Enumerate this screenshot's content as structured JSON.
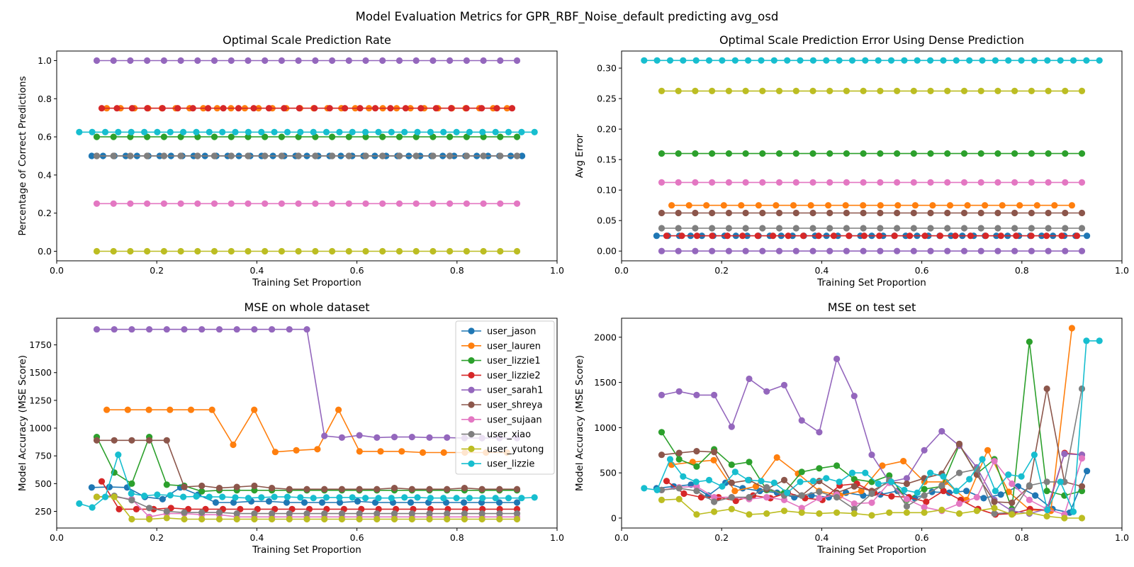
{
  "figure": {
    "suptitle": "Model Evaluation Metrics for GPR_RBF_Noise_default predicting avg_osd"
  },
  "colors": {
    "user_jason": "#1f77b4",
    "user_lauren": "#ff7f0e",
    "user_lizzie1": "#2ca02c",
    "user_lizzie2": "#d62728",
    "user_sarah1": "#9467bd",
    "user_shreya": "#8c564b",
    "user_sujaan": "#e377c2",
    "user_xiao": "#7f7f7f",
    "user_yutong": "#bcbd22",
    "user_lizzie": "#17becf"
  },
  "legend": [
    "user_jason",
    "user_lauren",
    "user_lizzie1",
    "user_lizzie2",
    "user_sarah1",
    "user_shreya",
    "user_sujaan",
    "user_xiao",
    "user_yutong",
    "user_lizzie"
  ],
  "chart_data": [
    {
      "type": "line",
      "title": "Optimal Scale Prediction Rate",
      "xlabel": "Training Set Proportion",
      "ylabel": "Percentage of Correct Predictions",
      "xlim": [
        0.0,
        1.0
      ],
      "ylim": [
        -0.05,
        1.05
      ],
      "xticks": [
        "0.0",
        "0.2",
        "0.4",
        "0.6",
        "0.8",
        "1.0"
      ],
      "yticks": [
        "0.0",
        "0.2",
        "0.4",
        "0.6",
        "0.8",
        "1.0"
      ],
      "series": [
        {
          "name": "user_jason",
          "x_start": 0.07,
          "x_end": 0.93,
          "n": 39,
          "values": [
            0.5
          ]
        },
        {
          "name": "user_lauren",
          "x_start": 0.1,
          "x_end": 0.9,
          "n": 30,
          "values": [
            0.75
          ]
        },
        {
          "name": "user_lizzie1",
          "x_start": 0.08,
          "x_end": 0.92,
          "n": 26,
          "values": [
            0.6
          ]
        },
        {
          "name": "user_lizzie2",
          "x_start": 0.09,
          "x_end": 0.91,
          "n": 28,
          "values": [
            0.75
          ]
        },
        {
          "name": "user_sarah1",
          "x_start": 0.08,
          "x_end": 0.92,
          "n": 26,
          "values": [
            1.0
          ]
        },
        {
          "name": "user_shreya",
          "x_start": 0.08,
          "x_end": 0.92,
          "n": 26,
          "values": [
            0.5
          ]
        },
        {
          "name": "user_sujaan",
          "x_start": 0.08,
          "x_end": 0.92,
          "n": 26,
          "values": [
            0.25
          ]
        },
        {
          "name": "user_xiao",
          "x_start": 0.08,
          "x_end": 0.92,
          "n": 26,
          "values": [
            0.5
          ]
        },
        {
          "name": "user_yutong",
          "x_start": 0.08,
          "x_end": 0.92,
          "n": 26,
          "values": [
            0.0
          ]
        },
        {
          "name": "user_lizzie",
          "x_start": 0.045,
          "x_end": 0.955,
          "n": 36,
          "values": [
            0.625
          ]
        }
      ]
    },
    {
      "type": "line",
      "title": "Optimal Scale Prediction Error Using Dense Prediction",
      "xlabel": "Training Set Proportion",
      "ylabel": "Avg Error",
      "xlim": [
        0.0,
        1.0
      ],
      "ylim": [
        -0.016,
        0.328
      ],
      "xticks": [
        "0.0",
        "0.2",
        "0.4",
        "0.6",
        "0.8",
        "1.0"
      ],
      "yticks": [
        "0.00",
        "0.05",
        "0.10",
        "0.15",
        "0.20",
        "0.25",
        "0.30"
      ],
      "series": [
        {
          "name": "user_jason",
          "x_start": 0.07,
          "x_end": 0.93,
          "n": 39,
          "values": [
            0.025
          ]
        },
        {
          "name": "user_lauren",
          "x_start": 0.1,
          "x_end": 0.9,
          "n": 24,
          "values": [
            0.075
          ]
        },
        {
          "name": "user_lizzie1",
          "x_start": 0.08,
          "x_end": 0.92,
          "n": 26,
          "values": [
            0.16
          ]
        },
        {
          "name": "user_lizzie2",
          "x_start": 0.09,
          "x_end": 0.91,
          "n": 28,
          "values": [
            0.025
          ]
        },
        {
          "name": "user_sarah1",
          "x_start": 0.08,
          "x_end": 0.92,
          "n": 26,
          "values": [
            0.0
          ]
        },
        {
          "name": "user_shreya",
          "x_start": 0.08,
          "x_end": 0.92,
          "n": 26,
          "values": [
            0.0625
          ]
        },
        {
          "name": "user_sujaan",
          "x_start": 0.08,
          "x_end": 0.92,
          "n": 26,
          "values": [
            0.1125
          ]
        },
        {
          "name": "user_xiao",
          "x_start": 0.08,
          "x_end": 0.92,
          "n": 26,
          "values": [
            0.0375
          ]
        },
        {
          "name": "user_yutong",
          "x_start": 0.08,
          "x_end": 0.92,
          "n": 26,
          "values": [
            0.2625
          ]
        },
        {
          "name": "user_lizzie",
          "x_start": 0.045,
          "x_end": 0.955,
          "n": 36,
          "values": [
            0.3125
          ]
        }
      ]
    },
    {
      "type": "line",
      "title": "MSE on whole dataset",
      "xlabel": "Training Set Proportion",
      "ylabel": "Model Accuracy (MSE Score)",
      "xlim": [
        0.0,
        1.0
      ],
      "ylim": [
        100,
        1990
      ],
      "xticks": [
        "0.0",
        "0.2",
        "0.4",
        "0.6",
        "0.8",
        "1.0"
      ],
      "yticks": [
        "250",
        "500",
        "750",
        "1000",
        "1250",
        "1500",
        "1750"
      ],
      "legend_position": "upper right",
      "series": [
        {
          "name": "user_jason",
          "x_start": 0.07,
          "x_end": 0.92,
          "n": 25,
          "values": [
            465,
            470,
            465,
            380,
            360,
            465,
            400,
            330,
            330,
            340,
            340,
            330,
            330,
            330,
            330,
            340,
            330,
            330,
            330,
            330,
            330,
            330,
            330,
            330,
            330
          ]
        },
        {
          "name": "user_lauren",
          "x_start": 0.1,
          "x_end": 0.9,
          "n": 20,
          "values": [
            1165,
            1165,
            1165,
            1165,
            1165,
            1165,
            850,
            1165,
            785,
            800,
            810,
            1165,
            790,
            790,
            790,
            780,
            780,
            780,
            780,
            780
          ]
        },
        {
          "name": "user_lizzie1",
          "x_start": 0.08,
          "x_end": 0.92,
          "n": 25,
          "values": [
            920,
            600,
            500,
            920,
            490,
            480,
            430,
            440,
            440,
            440,
            440,
            440,
            440,
            440,
            440,
            440,
            440,
            440,
            440,
            440,
            440,
            440,
            440,
            440,
            440
          ]
        },
        {
          "name": "user_lizzie2",
          "x_start": 0.09,
          "x_end": 0.92,
          "n": 25,
          "values": [
            520,
            270,
            270,
            270,
            280,
            270,
            270,
            270,
            270,
            270,
            270,
            270,
            270,
            270,
            270,
            270,
            270,
            270,
            270,
            270,
            270,
            270,
            270,
            270,
            270
          ]
        },
        {
          "name": "user_sarah1",
          "x_start": 0.08,
          "x_end": 0.92,
          "n": 25,
          "values": [
            1890,
            1890,
            1890,
            1890,
            1890,
            1890,
            1890,
            1890,
            1890,
            1890,
            1890,
            1890,
            1890,
            930,
            915,
            935,
            915,
            920,
            920,
            915,
            915,
            910,
            910,
            910,
            910
          ]
        },
        {
          "name": "user_shreya",
          "x_start": 0.08,
          "x_end": 0.92,
          "n": 25,
          "values": [
            890,
            890,
            890,
            890,
            890,
            470,
            480,
            460,
            470,
            480,
            460,
            450,
            450,
            450,
            450,
            450,
            450,
            460,
            450,
            450,
            450,
            460,
            450,
            450,
            450
          ]
        },
        {
          "name": "user_sujaan",
          "x_start": 0.08,
          "x_end": 0.92,
          "n": 25,
          "values": [
            380,
            380,
            360,
            200,
            230,
            230,
            220,
            220,
            200,
            200,
            200,
            200,
            200,
            200,
            200,
            200,
            200,
            200,
            200,
            200,
            200,
            200,
            200,
            200,
            200
          ]
        },
        {
          "name": "user_xiao",
          "x_start": 0.08,
          "x_end": 0.92,
          "n": 25,
          "values": [
            380,
            390,
            350,
            280,
            250,
            240,
            240,
            240,
            230,
            230,
            230,
            230,
            230,
            230,
            230,
            230,
            230,
            230,
            230,
            230,
            230,
            230,
            230,
            230,
            230
          ]
        },
        {
          "name": "user_yutong",
          "x_start": 0.08,
          "x_end": 0.92,
          "n": 25,
          "values": [
            380,
            380,
            180,
            180,
            190,
            180,
            180,
            180,
            180,
            180,
            180,
            180,
            180,
            180,
            180,
            180,
            180,
            180,
            180,
            180,
            180,
            180,
            180,
            180,
            180
          ]
        },
        {
          "name": "user_lizzie",
          "x_start": 0.045,
          "x_end": 0.955,
          "n": 36,
          "values": [
            320,
            285,
            380,
            760,
            410,
            390,
            400,
            395,
            380,
            385,
            380,
            380,
            375,
            370,
            375,
            380,
            380,
            375,
            370,
            375,
            375,
            375,
            370,
            370,
            370,
            375,
            375,
            370,
            370,
            370,
            370,
            370,
            370,
            370,
            370,
            375
          ]
        }
      ]
    },
    {
      "type": "line",
      "title": "MSE on test set",
      "xlabel": "Training Set Proportion",
      "ylabel": "Model Accuracy (MSE Score)",
      "xlim": [
        0.0,
        1.0
      ],
      "ylim": [
        -110,
        2210
      ],
      "xticks": [
        "0.0",
        "0.2",
        "0.4",
        "0.6",
        "0.8",
        "1.0"
      ],
      "yticks": [
        "0",
        "500",
        "1000",
        "1500",
        "2000"
      ],
      "series": [
        {
          "name": "user_jason",
          "x_start": 0.07,
          "x_end": 0.93,
          "n": 26,
          "values": [
            330,
            350,
            370,
            250,
            390,
            330,
            300,
            280,
            230,
            250,
            230,
            280,
            250,
            260,
            300,
            220,
            290,
            280,
            300,
            220,
            260,
            350,
            250,
            100,
            60,
            520
          ]
        },
        {
          "name": "user_lauren",
          "x_start": 0.1,
          "x_end": 0.9,
          "n": 20,
          "values": [
            590,
            620,
            640,
            300,
            350,
            670,
            490,
            300,
            250,
            300,
            580,
            630,
            400,
            400,
            200,
            750,
            290,
            90,
            80,
            2100
          ]
        },
        {
          "name": "user_lizzie1",
          "x_start": 0.08,
          "x_end": 0.92,
          "n": 25,
          "values": [
            950,
            650,
            570,
            760,
            590,
            620,
            310,
            280,
            510,
            550,
            580,
            430,
            400,
            470,
            200,
            320,
            350,
            810,
            490,
            650,
            100,
            1950,
            300,
            250,
            300
          ]
        },
        {
          "name": "user_lizzie2",
          "x_start": 0.09,
          "x_end": 0.92,
          "n": 25,
          "values": [
            410,
            270,
            230,
            230,
            190,
            250,
            220,
            280,
            220,
            200,
            360,
            380,
            280,
            240,
            230,
            180,
            300,
            200,
            100,
            40,
            50,
            100,
            90,
            720,
            700
          ]
        },
        {
          "name": "user_sarah1",
          "x_start": 0.08,
          "x_end": 0.92,
          "n": 25,
          "values": [
            1360,
            1400,
            1360,
            1360,
            1010,
            1540,
            1400,
            1470,
            1080,
            950,
            1760,
            1350,
            700,
            400,
            440,
            750,
            960,
            800,
            560,
            200,
            80,
            50,
            100,
            710,
            700
          ]
        },
        {
          "name": "user_shreya",
          "x_start": 0.08,
          "x_end": 0.92,
          "n": 25,
          "values": [
            700,
            720,
            740,
            730,
            390,
            420,
            320,
            420,
            250,
            410,
            280,
            350,
            300,
            400,
            380,
            440,
            490,
            820,
            480,
            180,
            170,
            350,
            1430,
            400,
            350
          ]
        },
        {
          "name": "user_sujaan",
          "x_start": 0.08,
          "x_end": 0.92,
          "n": 25,
          "values": [
            310,
            340,
            350,
            230,
            230,
            210,
            230,
            200,
            110,
            220,
            260,
            160,
            170,
            390,
            210,
            120,
            80,
            160,
            230,
            630,
            380,
            200,
            100,
            40,
            660
          ]
        },
        {
          "name": "user_xiao",
          "x_start": 0.08,
          "x_end": 0.92,
          "n": 25,
          "values": [
            310,
            330,
            300,
            180,
            230,
            230,
            340,
            250,
            250,
            290,
            230,
            100,
            270,
            420,
            130,
            250,
            360,
            500,
            540,
            50,
            60,
            360,
            400,
            400,
            1430
          ]
        },
        {
          "name": "user_yutong",
          "x_start": 0.08,
          "x_end": 0.92,
          "n": 25,
          "values": [
            200,
            210,
            40,
            70,
            100,
            40,
            50,
            80,
            60,
            50,
            60,
            50,
            30,
            60,
            60,
            60,
            90,
            50,
            80,
            110,
            40,
            60,
            20,
            0,
            0
          ]
        },
        {
          "name": "user_lizzie",
          "x_start": 0.045,
          "x_end": 0.955,
          "n": 36,
          "values": [
            330,
            310,
            650,
            460,
            400,
            420,
            350,
            510,
            420,
            410,
            390,
            280,
            400,
            410,
            440,
            400,
            500,
            500,
            380,
            400,
            310,
            280,
            500,
            460,
            300,
            430,
            650,
            300,
            480,
            460,
            700,
            90,
            400,
            70,
            1960,
            1960
          ]
        }
      ]
    }
  ]
}
